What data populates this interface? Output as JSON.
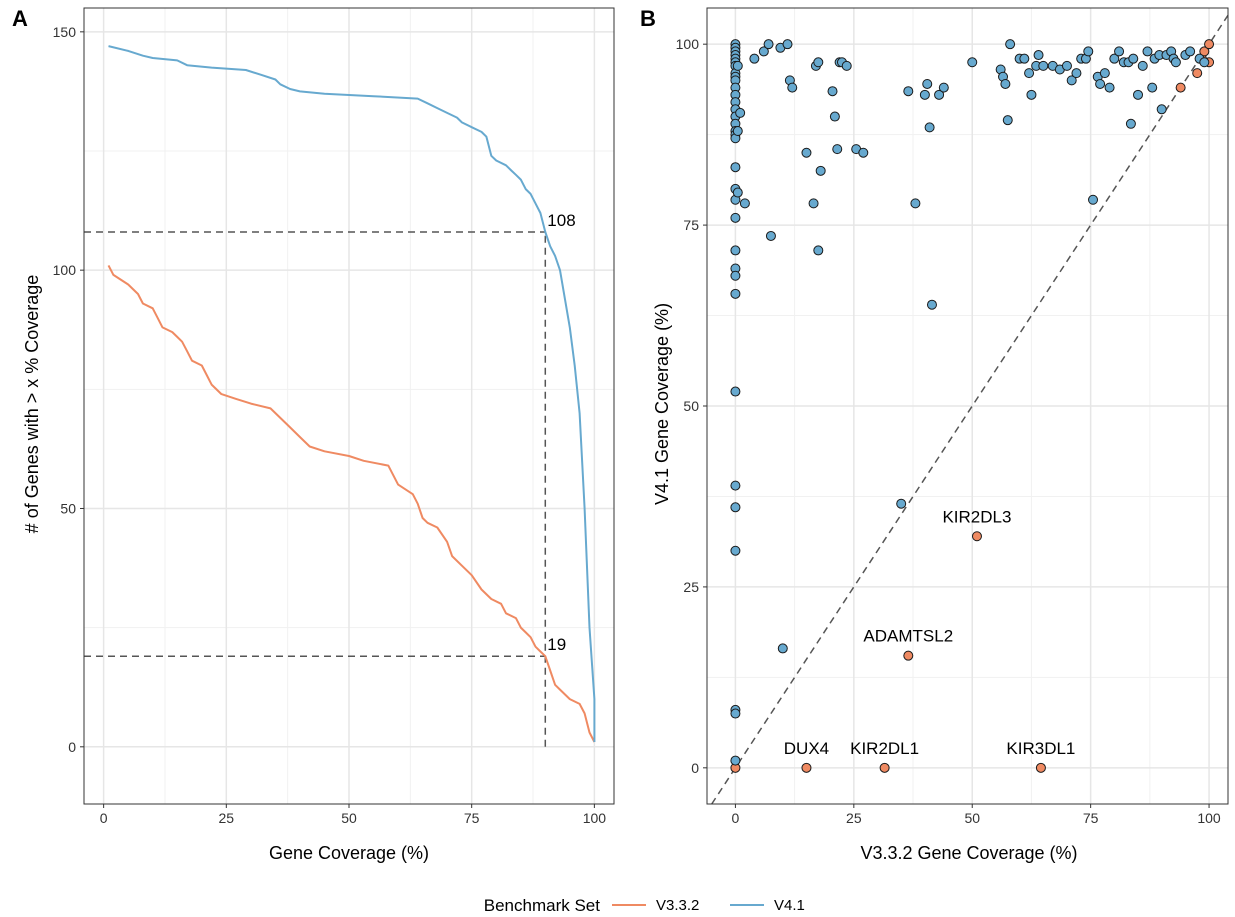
{
  "chart_data": [
    {
      "panel": "A",
      "type": "line",
      "title": "",
      "xlabel": "Gene Coverage (%)",
      "ylabel": "# of Genes with > x % Coverage",
      "xlim": [
        -4,
        104
      ],
      "ylim": [
        -12,
        155
      ],
      "x_ticks": [
        0,
        25,
        50,
        75,
        100
      ],
      "y_ticks": [
        0,
        50,
        100,
        150
      ],
      "grid": true,
      "series": [
        {
          "name": "V3.3.2",
          "color": "#EF8A62",
          "points": [
            [
              1,
              101
            ],
            [
              2,
              99
            ],
            [
              5,
              97
            ],
            [
              7,
              95
            ],
            [
              8,
              93
            ],
            [
              10,
              92
            ],
            [
              11,
              90
            ],
            [
              12,
              88
            ],
            [
              14,
              87
            ],
            [
              15,
              86
            ],
            [
              16,
              85
            ],
            [
              17,
              83
            ],
            [
              18,
              81
            ],
            [
              20,
              80
            ],
            [
              21,
              78
            ],
            [
              22,
              76
            ],
            [
              24,
              74
            ],
            [
              27,
              73
            ],
            [
              30,
              72
            ],
            [
              34,
              71
            ],
            [
              36,
              69
            ],
            [
              38,
              67
            ],
            [
              40,
              65
            ],
            [
              42,
              63
            ],
            [
              45,
              62
            ],
            [
              50,
              61
            ],
            [
              53,
              60
            ],
            [
              58,
              59
            ],
            [
              59,
              57
            ],
            [
              60,
              55
            ],
            [
              63,
              53
            ],
            [
              64,
              51
            ],
            [
              65,
              48
            ],
            [
              66,
              47
            ],
            [
              68,
              46
            ],
            [
              70,
              43
            ],
            [
              71,
              40
            ],
            [
              73,
              38
            ],
            [
              75,
              36
            ],
            [
              77,
              33
            ],
            [
              79,
              31
            ],
            [
              81,
              30
            ],
            [
              82,
              28
            ],
            [
              84,
              27
            ],
            [
              85,
              25
            ],
            [
              86,
              24
            ],
            [
              87,
              23
            ],
            [
              88,
              21
            ],
            [
              89,
              20
            ],
            [
              90,
              19
            ],
            [
              91,
              16
            ],
            [
              92,
              13
            ],
            [
              93,
              12
            ],
            [
              94,
              11
            ],
            [
              95,
              10
            ],
            [
              97,
              9
            ],
            [
              98,
              7
            ],
            [
              99,
              3
            ],
            [
              100,
              1
            ]
          ]
        },
        {
          "name": "V4.1",
          "color": "#67A9CF",
          "points": [
            [
              1,
              147
            ],
            [
              5,
              146
            ],
            [
              8,
              145
            ],
            [
              10,
              144.5
            ],
            [
              15,
              144
            ],
            [
              17,
              143
            ],
            [
              22,
              142.5
            ],
            [
              29,
              142
            ],
            [
              32,
              141
            ],
            [
              35,
              140
            ],
            [
              36,
              139
            ],
            [
              38,
              138
            ],
            [
              40,
              137.5
            ],
            [
              45,
              137
            ],
            [
              55,
              136.5
            ],
            [
              64,
              136
            ],
            [
              66,
              135
            ],
            [
              68,
              134
            ],
            [
              70,
              133
            ],
            [
              72,
              132
            ],
            [
              73,
              131
            ],
            [
              75,
              130
            ],
            [
              77,
              129
            ],
            [
              78,
              128
            ],
            [
              79,
              124
            ],
            [
              80,
              123
            ],
            [
              82,
              122
            ],
            [
              83,
              121
            ],
            [
              84,
              120
            ],
            [
              85,
              119
            ],
            [
              86,
              117
            ],
            [
              87,
              116
            ],
            [
              88,
              114
            ],
            [
              89,
              112
            ],
            [
              90,
              108
            ],
            [
              91,
              105
            ],
            [
              92,
              103
            ],
            [
              93,
              100
            ],
            [
              94,
              94
            ],
            [
              95,
              88
            ],
            [
              96,
              80
            ],
            [
              97,
              70
            ],
            [
              98,
              50
            ],
            [
              99,
              25
            ],
            [
              100,
              10
            ],
            [
              100,
              1
            ]
          ]
        }
      ],
      "annotations": [
        {
          "text": "108",
          "x": 90,
          "y": 108
        },
        {
          "text": "19",
          "x": 90,
          "y": 19
        }
      ],
      "reference_lines": [
        {
          "type": "h",
          "y": 108,
          "x_from": -4,
          "x_to": 90
        },
        {
          "type": "h",
          "y": 19,
          "x_from": -4,
          "x_to": 90
        },
        {
          "type": "v",
          "x": 90,
          "y_from": 0,
          "y_to": 108
        }
      ]
    },
    {
      "panel": "B",
      "type": "scatter",
      "title": "",
      "xlabel": "V3.3.2 Gene Coverage (%)",
      "ylabel": "V4.1 Gene Coverage (%)",
      "xlim": [
        -6,
        104
      ],
      "ylim": [
        -5,
        105
      ],
      "x_ticks": [
        0,
        25,
        50,
        75,
        100
      ],
      "y_ticks": [
        0,
        25,
        50,
        75,
        100
      ],
      "grid": true,
      "diagonal_reference": true,
      "series": [
        {
          "name": "V3.3.2",
          "color": "#EF8A62",
          "points": [
            [
              0,
              0
            ],
            [
              15,
              0
            ],
            [
              31.5,
              0
            ],
            [
              64.5,
              0
            ],
            [
              36.5,
              15.5
            ],
            [
              51,
              32
            ],
            [
              94,
              94
            ],
            [
              97.5,
              96
            ],
            [
              98.5,
              98
            ],
            [
              99,
              99
            ],
            [
              100,
              97.5
            ],
            [
              100,
              100
            ]
          ]
        },
        {
          "name": "V4.1",
          "color": "#67A9CF",
          "points": [
            [
              0,
              100
            ],
            [
              0,
              99.5
            ],
            [
              0,
              99
            ],
            [
              0,
              98.5
            ],
            [
              0,
              98
            ],
            [
              0,
              97.5
            ],
            [
              0,
              97
            ],
            [
              0,
              96
            ],
            [
              0,
              95.5
            ],
            [
              0,
              95
            ],
            [
              0,
              94
            ],
            [
              0,
              93
            ],
            [
              0,
              92
            ],
            [
              0,
              91
            ],
            [
              0,
              90
            ],
            [
              0,
              89
            ],
            [
              0,
              88
            ],
            [
              0,
              87.5
            ],
            [
              0,
              87
            ],
            [
              0,
              83
            ],
            [
              0,
              80
            ],
            [
              0,
              78.5
            ],
            [
              0,
              76
            ],
            [
              0,
              71.5
            ],
            [
              0,
              69
            ],
            [
              0,
              68
            ],
            [
              0,
              65.5
            ],
            [
              0,
              52
            ],
            [
              0,
              39
            ],
            [
              0,
              36
            ],
            [
              0,
              30
            ],
            [
              0,
              8
            ],
            [
              0,
              7.5
            ],
            [
              0,
              1
            ],
            [
              0.5,
              97
            ],
            [
              0.5,
              88
            ],
            [
              0.5,
              79.5
            ],
            [
              1,
              90.5
            ],
            [
              2,
              78
            ],
            [
              4,
              98
            ],
            [
              6,
              99
            ],
            [
              7,
              100
            ],
            [
              7.5,
              73.5
            ],
            [
              9.5,
              99.5
            ],
            [
              10,
              16.5
            ],
            [
              11,
              100
            ],
            [
              11.5,
              95
            ],
            [
              12,
              94
            ],
            [
              15,
              85
            ],
            [
              16.5,
              78
            ],
            [
              17,
              97
            ],
            [
              17.5,
              97.5
            ],
            [
              17.5,
              71.5
            ],
            [
              18,
              82.5
            ],
            [
              20.5,
              93.5
            ],
            [
              21,
              90
            ],
            [
              21.5,
              85.5
            ],
            [
              22,
              97.5
            ],
            [
              22.5,
              97.5
            ],
            [
              23.5,
              97
            ],
            [
              25.5,
              85.5
            ],
            [
              27,
              85
            ],
            [
              35,
              36.5
            ],
            [
              36.5,
              93.5
            ],
            [
              38,
              78
            ],
            [
              40,
              93
            ],
            [
              40.5,
              94.5
            ],
            [
              41,
              88.5
            ],
            [
              41.5,
              64
            ],
            [
              43,
              93
            ],
            [
              44,
              94
            ],
            [
              50,
              97.5
            ],
            [
              56,
              96.5
            ],
            [
              56.5,
              95.5
            ],
            [
              57,
              94.5
            ],
            [
              57.5,
              89.5
            ],
            [
              58,
              100
            ],
            [
              60,
              98
            ],
            [
              61,
              98
            ],
            [
              62,
              96
            ],
            [
              62.5,
              93
            ],
            [
              63.5,
              97
            ],
            [
              64,
              98.5
            ],
            [
              65,
              97
            ],
            [
              67,
              97
            ],
            [
              68.5,
              96.5
            ],
            [
              70,
              97
            ],
            [
              71,
              95
            ],
            [
              72,
              96
            ],
            [
              73,
              98
            ],
            [
              74,
              98
            ],
            [
              74.5,
              99
            ],
            [
              75.5,
              78.5
            ],
            [
              76.5,
              95.5
            ],
            [
              77,
              94.5
            ],
            [
              78,
              96
            ],
            [
              79,
              94
            ],
            [
              80,
              98
            ],
            [
              81,
              99
            ],
            [
              82,
              97.5
            ],
            [
              83,
              97.5
            ],
            [
              83.5,
              89
            ],
            [
              84,
              98
            ],
            [
              85,
              93
            ],
            [
              86,
              97
            ],
            [
              87,
              99
            ],
            [
              88,
              94
            ],
            [
              88.5,
              98
            ],
            [
              89.5,
              98.5
            ],
            [
              90,
              91
            ],
            [
              91,
              98.5
            ],
            [
              92,
              99
            ],
            [
              92.5,
              98
            ],
            [
              93,
              97.5
            ],
            [
              95,
              98.5
            ],
            [
              96,
              99
            ],
            [
              98,
              98
            ],
            [
              99,
              97.5
            ]
          ]
        }
      ],
      "annotations": [
        {
          "text": "KIR2DL3",
          "x": 51,
          "y": 32
        },
        {
          "text": "ADAMTSL2",
          "x": 36.5,
          "y": 15.5
        },
        {
          "text": "DUX4",
          "x": 15,
          "y": 0
        },
        {
          "text": "KIR2DL1",
          "x": 31.5,
          "y": 0
        },
        {
          "text": "KIR3DL1",
          "x": 64.5,
          "y": 0
        }
      ]
    }
  ],
  "legend": {
    "title": "Benchmark Set",
    "placement": "bottom",
    "entries": [
      {
        "name": "V3.3.2",
        "color": "#EF8A62"
      },
      {
        "name": "V4.1",
        "color": "#67A9CF"
      }
    ]
  }
}
